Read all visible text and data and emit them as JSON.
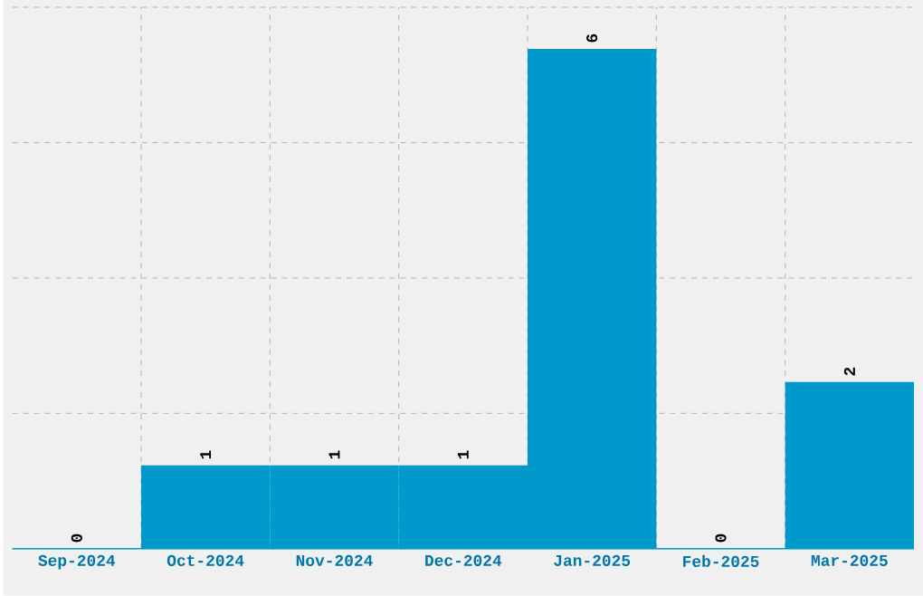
{
  "chart_data": {
    "type": "bar",
    "categories": [
      "Sep-2024",
      "Oct-2024",
      "Nov-2024",
      "Dec-2024",
      "Jan-2025",
      "Feb-2025",
      "Mar-2025"
    ],
    "values": [
      0,
      1,
      1,
      1,
      6,
      0,
      2
    ],
    "color": "#0099cc",
    "data_labels": true,
    "grid": true,
    "tick_labels": "x",
    "ylim": [
      0,
      6.5
    ],
    "yticks": [
      {
        "value": 0,
        "label": null
      },
      {
        "value": 1.625,
        "label": null
      },
      {
        "value": 3.25,
        "label": null
      },
      {
        "value": 4.875,
        "label": null
      },
      {
        "value": 6.5,
        "label": null
      }
    ]
  }
}
